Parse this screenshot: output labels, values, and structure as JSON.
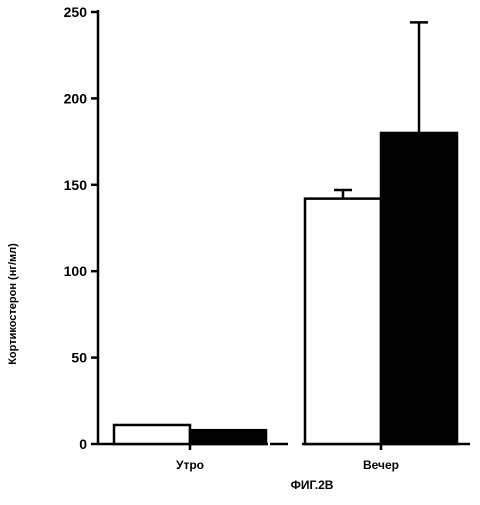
{
  "chart_data": {
    "type": "bar",
    "title": "",
    "xlabel": "",
    "ylabel": "Кортикостерон (нг/мл)",
    "categories": [
      "Утро",
      "Вечер"
    ],
    "ylim": [
      0,
      250
    ],
    "yticks": [
      0,
      50,
      100,
      150,
      200,
      250
    ],
    "grid": false,
    "legend": "none",
    "series": [
      {
        "fill": "#ffffff",
        "values": [
          11,
          142
        ],
        "errors": [
          0,
          5
        ]
      },
      {
        "fill": "#000000",
        "values": [
          8,
          180
        ],
        "errors": [
          0,
          64
        ]
      }
    ]
  },
  "figure": {
    "caption": "ФИГ.2В"
  }
}
